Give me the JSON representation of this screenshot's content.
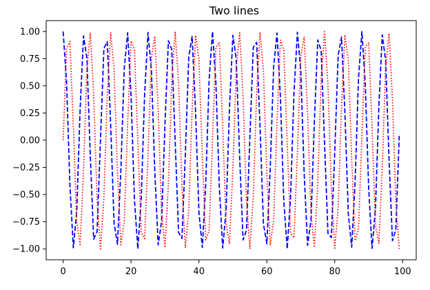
{
  "chart_data": {
    "type": "line",
    "title": "Two lines",
    "xlabel": "",
    "ylabel": "",
    "xlim": [
      -5,
      104
    ],
    "ylim": [
      -1.1,
      1.1
    ],
    "xticks": [
      0,
      20,
      40,
      60,
      80,
      100
    ],
    "yticks": [
      -1.0,
      -0.75,
      -0.5,
      -0.25,
      0.0,
      0.25,
      0.5,
      0.75,
      1.0
    ],
    "xtick_labels": [
      "0",
      "20",
      "40",
      "60",
      "80",
      "100"
    ],
    "ytick_labels": [
      "−1.00",
      "−0.75",
      "−0.50",
      "−0.25",
      "0.00",
      "0.25",
      "0.50",
      "0.75",
      "1.00"
    ],
    "grid": false,
    "legend": "none",
    "x": [
      0,
      1,
      2,
      3,
      4,
      5,
      6,
      7,
      8,
      9,
      10,
      11,
      12,
      13,
      14,
      15,
      16,
      17,
      18,
      19,
      20,
      21,
      22,
      23,
      24,
      25,
      26,
      27,
      28,
      29,
      30,
      31,
      32,
      33,
      34,
      35,
      36,
      37,
      38,
      39,
      40,
      41,
      42,
      43,
      44,
      45,
      46,
      47,
      48,
      49,
      50,
      51,
      52,
      53,
      54,
      55,
      56,
      57,
      58,
      59,
      60,
      61,
      62,
      63,
      64,
      65,
      66,
      67,
      68,
      69,
      70,
      71,
      72,
      73,
      74,
      75,
      76,
      77,
      78,
      79,
      80,
      81,
      82,
      83,
      84,
      85,
      86,
      87,
      88,
      89,
      90,
      91,
      92,
      93,
      94,
      95,
      96,
      97,
      98,
      99
    ],
    "series": [
      {
        "color": "#0000ff",
        "style": "dashed",
        "values": [
          1.0,
          0.54,
          -0.416,
          -0.99,
          -0.654,
          0.284,
          0.96,
          0.754,
          -0.146,
          -0.911,
          -0.839,
          0.004,
          0.844,
          0.907,
          0.137,
          -0.76,
          -0.958,
          -0.275,
          0.66,
          0.989,
          0.408,
          -0.548,
          -1.0,
          -0.533,
          0.424,
          0.991,
          0.647,
          -0.292,
          -0.963,
          -0.748,
          0.154,
          0.915,
          0.834,
          -0.012,
          -0.848,
          -0.904,
          -0.128,
          0.765,
          0.955,
          0.267,
          -0.667,
          -0.987,
          -0.4,
          0.555,
          1.0,
          0.525,
          -0.432,
          -0.992,
          -0.641,
          0.3,
          0.965,
          0.742,
          -0.162,
          -0.918,
          -0.829,
          0.021,
          0.853,
          0.9,
          0.12,
          -0.771,
          -0.952,
          -0.258,
          0.673,
          0.986,
          0.391,
          -0.562,
          -1.0,
          -0.518,
          0.44,
          0.993,
          0.634,
          -0.309,
          -0.967,
          -0.736,
          0.171,
          0.922,
          0.824,
          -0.029,
          -0.857,
          -0.896,
          -0.111,
          0.777,
          0.949,
          0.249,
          -0.68,
          -0.984,
          -0.383,
          0.57,
          0.999,
          0.51,
          -0.448,
          -0.995,
          -0.628,
          0.317,
          0.969,
          0.73,
          -0.179,
          -0.925,
          -0.819,
          0.04
        ]
      },
      {
        "color": "#ff0000",
        "style": "dotted",
        "values": [
          0.0,
          0.841,
          0.909,
          0.141,
          -0.757,
          -0.959,
          -0.279,
          0.657,
          0.989,
          0.412,
          -0.544,
          -1.0,
          -0.537,
          0.42,
          0.991,
          0.65,
          -0.288,
          -0.961,
          -0.751,
          0.15,
          0.913,
          0.837,
          -0.009,
          -0.846,
          -0.906,
          -0.132,
          0.763,
          0.956,
          0.271,
          -0.664,
          -0.988,
          -0.404,
          0.551,
          1.0,
          0.529,
          -0.428,
          -0.992,
          -0.644,
          0.296,
          0.964,
          0.745,
          -0.158,
          -0.917,
          -0.832,
          0.018,
          0.851,
          0.902,
          0.124,
          -0.768,
          -0.954,
          -0.262,
          0.67,
          0.987,
          0.395,
          -0.559,
          -1.0,
          -0.522,
          0.436,
          0.993,
          0.637,
          -0.305,
          -0.966,
          -0.739,
          0.167,
          0.92,
          0.827,
          -0.027,
          -0.855,
          -0.898,
          -0.115,
          0.774,
          0.951,
          0.254,
          -0.677,
          -0.985,
          -0.388,
          0.566,
          0.999,
          0.514,
          -0.444,
          -0.994,
          -0.63,
          0.313,
          0.968,
          0.733,
          -0.176,
          -0.924,
          -0.822,
          0.035,
          0.86,
          0.894,
          0.107,
          -0.779,
          -0.948,
          -0.245,
          0.683,
          0.983,
          0.379,
          -0.574,
          -0.999
        ]
      }
    ]
  }
}
